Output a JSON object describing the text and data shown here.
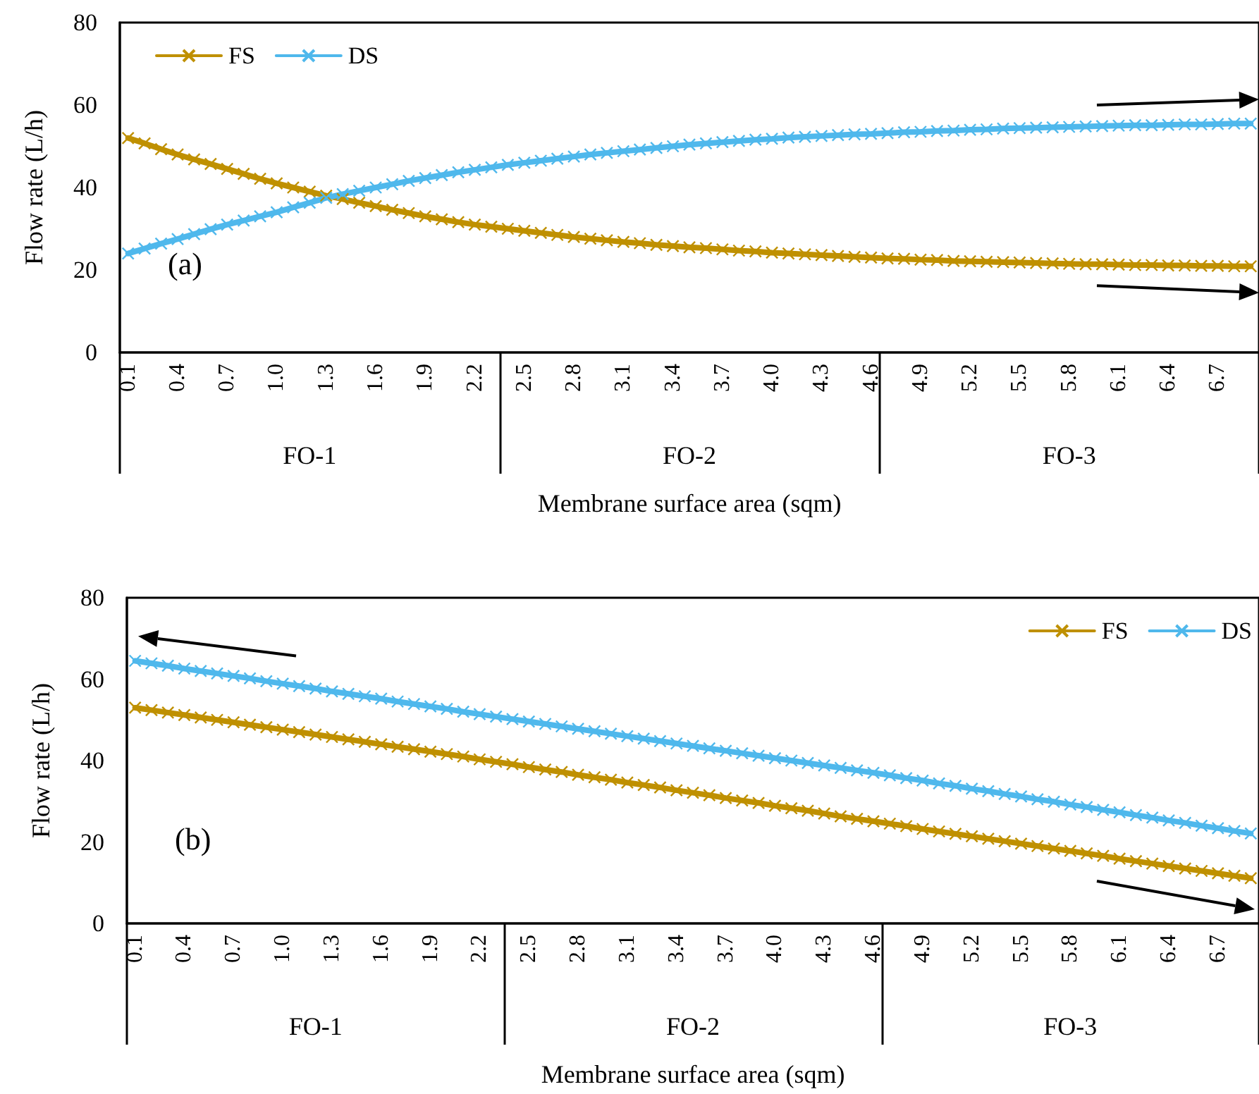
{
  "chart_data": [
    {
      "type": "line",
      "xlabel": "Membrane surface area (sqm)",
      "ylabel": "Flow rate (L/h)",
      "annotations": [
        "FO-1",
        "FO-2",
        "FO-3",
        "(a)"
      ],
      "categories": [
        "0.1",
        null,
        null,
        "0.4",
        null,
        null,
        "0.7",
        null,
        null,
        "1.0",
        null,
        null,
        "1.3",
        null,
        null,
        "1.6",
        null,
        null,
        "1.9",
        null,
        null,
        "2.2",
        null,
        null,
        "2.5",
        null,
        null,
        "2.8",
        null,
        null,
        "3.1",
        null,
        null,
        "3.4",
        null,
        null,
        "3.7",
        null,
        null,
        "4.0",
        null,
        null,
        "4.3",
        null,
        null,
        "4.6",
        null,
        null,
        "4.9",
        null,
        null,
        "5.2",
        null,
        null,
        "5.5",
        null,
        null,
        "5.8",
        null,
        null,
        "6.1",
        null,
        null,
        "6.4",
        null,
        null,
        "6.7",
        null,
        null
      ],
      "ylim": [
        0,
        80
      ],
      "yticks": [
        0,
        20,
        40,
        60,
        80
      ],
      "grid": false,
      "legend": "top left",
      "marker": "cross",
      "line_style": "solid",
      "series": [
        {
          "name": "FS",
          "color": "#bf9000",
          "values": [
            52,
            50.7,
            49.3,
            48,
            46.8,
            45.7,
            44.5,
            43.3,
            42.1,
            41,
            40,
            39,
            38,
            37.2,
            36.3,
            35.5,
            34.6,
            33.8,
            33,
            32.3,
            31.6,
            31,
            30.5,
            30,
            29.5,
            29,
            28.5,
            28,
            27.6,
            27.2,
            26.8,
            26.5,
            26.1,
            25.8,
            25.5,
            25.3,
            25,
            24.7,
            24.5,
            24.2,
            24,
            23.8,
            23.6,
            23.4,
            23.2,
            23,
            22.8,
            22.7,
            22.5,
            22.4,
            22.2,
            22.1,
            22,
            21.9,
            21.8,
            21.7,
            21.6,
            21.5,
            21.4,
            21.4,
            21.3,
            21.2,
            21.2,
            21.1,
            21.1,
            21,
            21,
            20.9,
            20.9
          ]
        },
        {
          "name": "DS",
          "color": "#4fb8ec",
          "values": [
            24,
            25.2,
            26.4,
            27.5,
            28.7,
            29.9,
            31,
            32,
            33,
            34,
            35.2,
            36.3,
            37.5,
            38.4,
            39.2,
            40,
            40.8,
            41.6,
            42.3,
            43,
            43.7,
            44.3,
            44.9,
            45.5,
            46,
            46.5,
            47,
            47.5,
            48,
            48.4,
            48.8,
            49.2,
            49.6,
            50,
            50.4,
            50.7,
            51,
            51.3,
            51.6,
            51.8,
            52.1,
            52.3,
            52.5,
            52.7,
            52.9,
            53,
            53.2,
            53.4,
            53.5,
            53.7,
            53.8,
            54,
            54.1,
            54.3,
            54.4,
            54.5,
            54.6,
            54.7,
            54.8,
            54.9,
            55,
            55.1,
            55.1,
            55.2,
            55.3,
            55.3,
            55.4,
            55.5,
            55.5
          ]
        }
      ]
    },
    {
      "type": "line",
      "xlabel": "Membrane surface area (sqm)",
      "ylabel": "Flow rate (L/h)",
      "annotations": [
        "FO-1",
        "FO-2",
        "FO-3",
        "(b)"
      ],
      "categories": [
        "0.1",
        null,
        null,
        "0.4",
        null,
        null,
        "0.7",
        null,
        null,
        "1.0",
        null,
        null,
        "1.3",
        null,
        null,
        "1.6",
        null,
        null,
        "1.9",
        null,
        null,
        "2.2",
        null,
        null,
        "2.5",
        null,
        null,
        "2.8",
        null,
        null,
        "3.1",
        null,
        null,
        "3.4",
        null,
        null,
        "3.7",
        null,
        null,
        "4.0",
        null,
        null,
        "4.3",
        null,
        null,
        "4.6",
        null,
        null,
        "4.9",
        null,
        null,
        "5.2",
        null,
        null,
        "5.5",
        null,
        null,
        "5.8",
        null,
        null,
        "6.1",
        null,
        null,
        "6.4",
        null,
        null,
        "6.7",
        null,
        null
      ],
      "ylim": [
        0,
        80
      ],
      "yticks": [
        0,
        20,
        40,
        60,
        80
      ],
      "grid": false,
      "legend": "top right",
      "marker": "cross",
      "line_style": "solid",
      "series": [
        {
          "name": "FS",
          "color": "#bf9000",
          "values": [
            53,
            52.4,
            51.8,
            51.2,
            50.6,
            50,
            49.4,
            48.8,
            48.2,
            47.6,
            47,
            46.4,
            45.8,
            45.2,
            44.6,
            44,
            43.4,
            42.8,
            42.2,
            41.6,
            41,
            40.3,
            39.7,
            39.1,
            38.4,
            37.8,
            37.2,
            36.5,
            35.9,
            35.3,
            34.6,
            34,
            33.4,
            32.7,
            32.1,
            31.5,
            30.8,
            30.2,
            29.6,
            28.9,
            28.3,
            27.7,
            27,
            26.3,
            25.7,
            25.1,
            24.5,
            23.9,
            23.2,
            22.6,
            22,
            21.4,
            20.8,
            20.2,
            19.6,
            19,
            18.4,
            17.8,
            17.2,
            16.6,
            15.9,
            15.3,
            14.7,
            14.1,
            13.5,
            12.9,
            12.3,
            11.7,
            11.1
          ]
        },
        {
          "name": "DS",
          "color": "#4fb8ec",
          "values": [
            64.5,
            63.9,
            63.3,
            62.6,
            62,
            61.4,
            60.8,
            60.2,
            59.5,
            58.9,
            58.3,
            57.7,
            57,
            56.4,
            55.8,
            55.2,
            54.5,
            53.9,
            53.3,
            52.7,
            52,
            51.4,
            50.8,
            50.2,
            49.6,
            49,
            48.4,
            47.8,
            47.2,
            46.6,
            46,
            45.4,
            44.8,
            44.2,
            43.6,
            43,
            42.4,
            41.8,
            41.2,
            40.6,
            40,
            39.4,
            38.8,
            38.2,
            37.6,
            37,
            36.4,
            35.7,
            35.1,
            34.4,
            33.8,
            33.1,
            32.5,
            31.8,
            31.2,
            30.5,
            29.9,
            29.2,
            28.6,
            27.9,
            27.3,
            26.6,
            26,
            25.3,
            24.7,
            24,
            23.4,
            22.7,
            22.1
          ]
        }
      ]
    }
  ]
}
